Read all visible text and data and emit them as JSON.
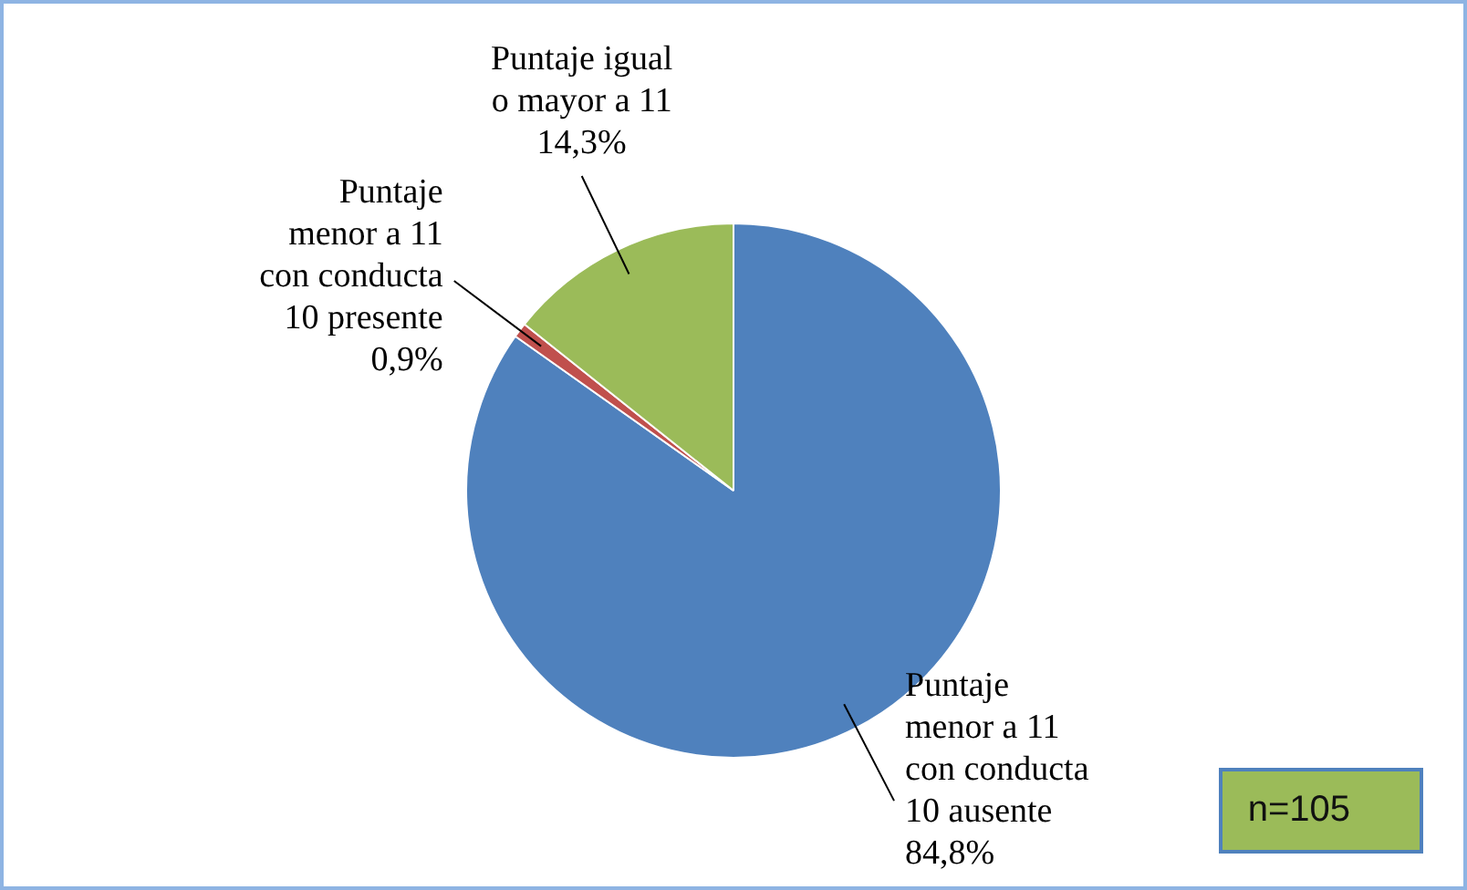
{
  "chart_data": {
    "type": "pie",
    "categories": [
      "Puntaje menor a 11 con conducta 10 ausente",
      "Puntaje menor a 11 con conducta 10 presente",
      "Puntaje igual o mayor a 11"
    ],
    "values": [
      84.8,
      0.9,
      14.3
    ],
    "colors": [
      "#4f81bd",
      "#c0504d",
      "#9bbb59"
    ],
    "value_labels": [
      "84,8%",
      "0,9%",
      "14,3%"
    ],
    "legend": false,
    "annotations": [
      "n=105"
    ]
  }
}
